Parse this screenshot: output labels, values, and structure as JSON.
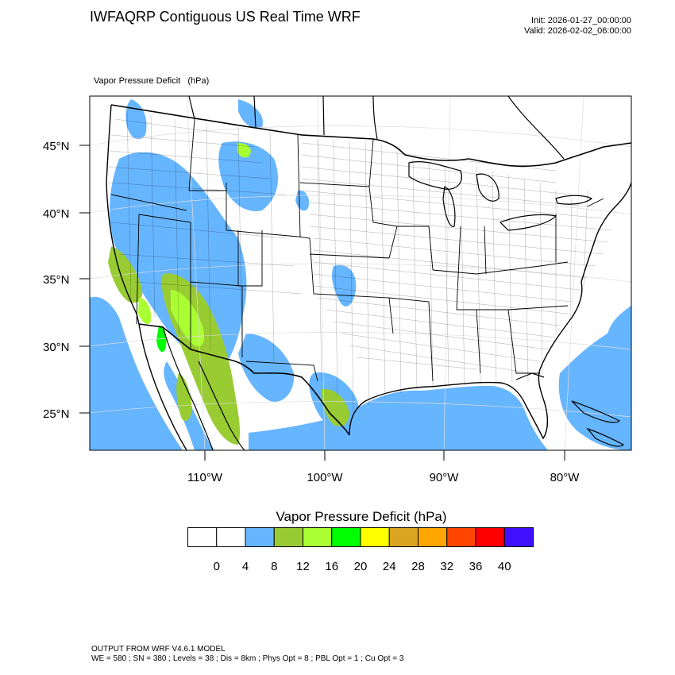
{
  "title": "IWFAQRP Contiguous US Real Time WRF",
  "init": "Init: 2026-01-27_00:00:00",
  "valid": "Valid: 2026-02-02_06:00:00",
  "field_label": "Vapor Pressure Deficit   (hPa)",
  "map": {
    "lat_labels": [
      "45°N",
      "40°N",
      "35°N",
      "30°N",
      "25°N"
    ],
    "lon_labels": [
      "110°W",
      "100°W",
      "90°W",
      "80°W"
    ],
    "colors": {
      "ocean_fill": "#66b5ff",
      "land": "#ffffff",
      "borders": "#000000"
    }
  },
  "legend": {
    "title": "Vapor Pressure Deficit  (hPa)",
    "colors": [
      "#ffffff",
      "#ffffff",
      "#66b5ff",
      "#99cc33",
      "#aaff33",
      "#00ff00",
      "#ffff00",
      "#daa520",
      "#ffa500",
      "#ff4500",
      "#ff0000",
      "#4010ff"
    ],
    "labels": [
      "0",
      "4",
      "8",
      "12",
      "16",
      "20",
      "24",
      "28",
      "32",
      "36",
      "40"
    ]
  },
  "footer": {
    "line1": "OUTPUT FROM WRF V4.6.1 MODEL",
    "line2": "WE = 580 ; SN = 380 ; Levels = 38 ; Dis = 8km ; Phys Opt = 8 ; PBL Opt = 1 ; Cu Opt = 3"
  }
}
